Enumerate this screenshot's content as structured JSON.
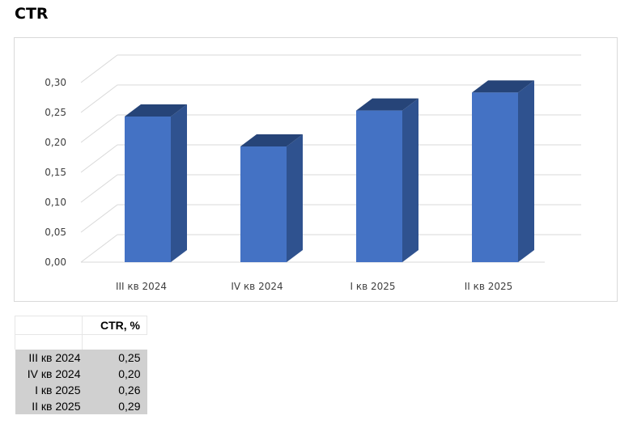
{
  "page": {
    "title": "CTR"
  },
  "chart_data": {
    "type": "bar",
    "title": "",
    "categories": [
      "III кв 2024",
      "IV кв 2024",
      "I кв 2025",
      "II кв 2025"
    ],
    "values": [
      0.25,
      0.2,
      0.26,
      0.29
    ],
    "yticks": [
      "0,00",
      "0,05",
      "0,10",
      "0,15",
      "0,20",
      "0,25",
      "0,30"
    ],
    "ylim": [
      0,
      0.3
    ],
    "grid": true,
    "legend": "none",
    "colors": {
      "front": "#4472C4",
      "side": "#2F528F",
      "top": "#264478",
      "grid": "#d9d9d9"
    }
  },
  "table": {
    "header": "CTR, %",
    "rows": [
      {
        "category": "III кв 2024",
        "value": "0,25"
      },
      {
        "category": "IV кв 2024",
        "value": "0,20"
      },
      {
        "category": "I кв 2025",
        "value": "0,26"
      },
      {
        "category": "II кв 2025",
        "value": "0,29"
      }
    ]
  }
}
